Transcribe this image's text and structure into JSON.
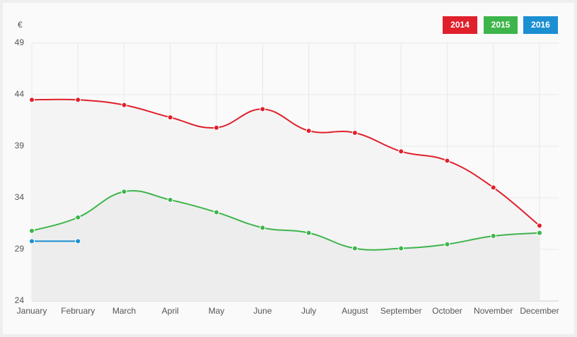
{
  "chart_data": {
    "type": "line",
    "y_label": "€",
    "categories": [
      "January",
      "February",
      "March",
      "April",
      "May",
      "June",
      "July",
      "August",
      "September",
      "October",
      "November",
      "December"
    ],
    "series": [
      {
        "name": "2014",
        "color": "#e0202b",
        "values": [
          43.5,
          43.5,
          43.0,
          41.8,
          40.8,
          42.6,
          40.5,
          40.3,
          38.5,
          37.6,
          35.0,
          31.3
        ]
      },
      {
        "name": "2015",
        "color": "#3db54a",
        "values": [
          30.8,
          32.1,
          34.6,
          33.8,
          32.6,
          31.1,
          30.6,
          29.1,
          29.1,
          29.5,
          30.3,
          30.6
        ]
      },
      {
        "name": "2016",
        "color": "#1b8fd2",
        "values": [
          29.8,
          29.8,
          null,
          null,
          null,
          null,
          null,
          null,
          null,
          null,
          null,
          null
        ]
      }
    ],
    "ylim": [
      24,
      49
    ],
    "yticks": [
      24,
      29,
      34,
      39,
      44,
      49
    ],
    "grid": true,
    "legend": "top-right"
  }
}
